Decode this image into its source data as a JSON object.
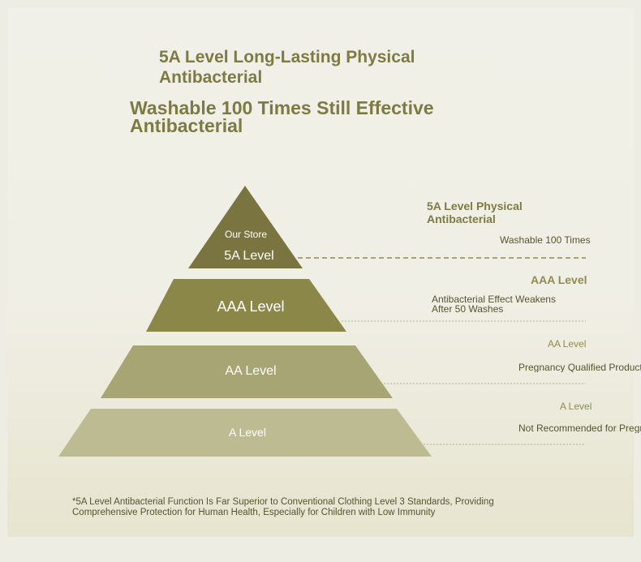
{
  "titles": {
    "headline": "5A Level Long-Lasting Physical Antibacterial",
    "subheadline": "Washable 100 Times Still Effective Antibacterial"
  },
  "pyramid": {
    "tier_5a": {
      "tag": "Our Store",
      "label": "5A Level"
    },
    "tier_aaa": {
      "label": "AAA Level"
    },
    "tier_aa": {
      "label": "AA Level"
    },
    "tier_a": {
      "label": "A Level"
    }
  },
  "side": {
    "tier_5a": {
      "heading": "5A Level Physical Antibacterial",
      "note": "Washable 100 Times"
    },
    "tier_aaa": {
      "heading": "AAA Level",
      "note": "Antibacterial Effect Weakens After 50 Washes"
    },
    "tier_aa": {
      "heading": "AA Level",
      "note": "Pregnancy Qualified Product"
    },
    "tier_a": {
      "heading": "A Level",
      "note": "Not Recommended for Pregnancy"
    }
  },
  "footnote": "*5A Level Antibacterial Function Is Far Superior to Conventional Clothing Level 3 Standards, Providing Comprehensive Protection for Human Health, Especially for Children with Low Immunity",
  "colors": {
    "tier_5a": "#7a7540",
    "tier_aaa": "#8b8748",
    "tier_aa": "#a8a574",
    "tier_a": "#bdbb92",
    "title": "#7d7a44",
    "dashed": "#8f8b4f"
  }
}
